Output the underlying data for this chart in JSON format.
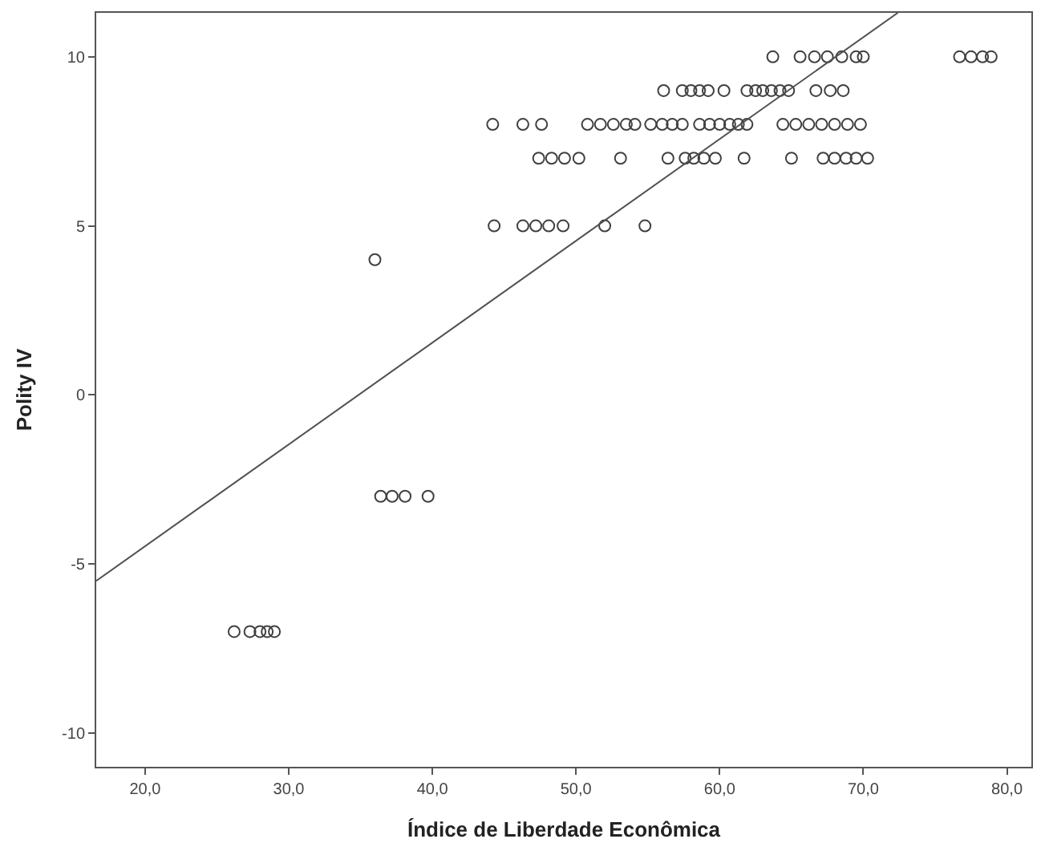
{
  "chart_data": {
    "type": "scatter",
    "xlabel": "Índice de Liberdade Econômica",
    "ylabel": "Polity IV",
    "xlim": [
      16.6,
      81.7
    ],
    "ylim": [
      -11.0,
      11.3
    ],
    "xticks": [
      {
        "value": 20,
        "label": "20,0"
      },
      {
        "value": 30,
        "label": "30,0"
      },
      {
        "value": 40,
        "label": "40,0"
      },
      {
        "value": 50,
        "label": "50,0"
      },
      {
        "value": 60,
        "label": "60,0"
      },
      {
        "value": 70,
        "label": "70,0"
      },
      {
        "value": 80,
        "label": "80,0"
      }
    ],
    "yticks": [
      -10,
      -5,
      0,
      5,
      10
    ],
    "marker": "circle",
    "series": [
      {
        "color": "#404040",
        "x": [
          63.7,
          65.6,
          66.6,
          67.5,
          68.5,
          69.5,
          70.0,
          76.7,
          77.5,
          78.3,
          78.9,
          56.1,
          57.4,
          58.0,
          58.6,
          59.2,
          60.3,
          61.9,
          62.5,
          63.0,
          63.6,
          64.2,
          64.8,
          66.7,
          67.7,
          68.6,
          44.2,
          46.3,
          47.6,
          50.8,
          51.7,
          52.6,
          53.5,
          54.1,
          55.2,
          56.0,
          56.7,
          57.4,
          58.6,
          59.3,
          60.0,
          60.7,
          61.3,
          61.9,
          64.4,
          65.3,
          66.2,
          67.1,
          68.0,
          68.9,
          69.8,
          47.4,
          48.3,
          49.2,
          50.2,
          53.1,
          56.4,
          57.6,
          58.2,
          58.9,
          59.7,
          61.7,
          65.0,
          67.2,
          68.0,
          68.8,
          69.5,
          70.3,
          44.3,
          46.3,
          47.2,
          48.1,
          49.1,
          52.0,
          54.8,
          36.0,
          36.4,
          37.2,
          38.1,
          39.7,
          26.2,
          27.3,
          28.0,
          28.5,
          29.0
        ],
        "values": [
          10,
          10,
          10,
          10,
          10,
          10,
          10,
          10,
          10,
          10,
          10,
          9,
          9,
          9,
          9,
          9,
          9,
          9,
          9,
          9,
          9,
          9,
          9,
          9,
          9,
          9,
          8,
          8,
          8,
          8,
          8,
          8,
          8,
          8,
          8,
          8,
          8,
          8,
          8,
          8,
          8,
          8,
          8,
          8,
          8,
          8,
          8,
          8,
          8,
          8,
          8,
          7,
          7,
          7,
          7,
          7,
          7,
          7,
          7,
          7,
          7,
          7,
          7,
          7,
          7,
          7,
          7,
          7,
          5,
          5,
          5,
          5,
          5,
          5,
          5,
          4,
          -3,
          -3,
          -3,
          -3,
          -7,
          -7,
          -7,
          -7,
          -7
        ]
      },
      {
        "type": "line",
        "color": "#505050",
        "marker": "none",
        "x": [
          16.6,
          72.4
        ],
        "values": [
          -5.5,
          11.3
        ]
      }
    ]
  }
}
